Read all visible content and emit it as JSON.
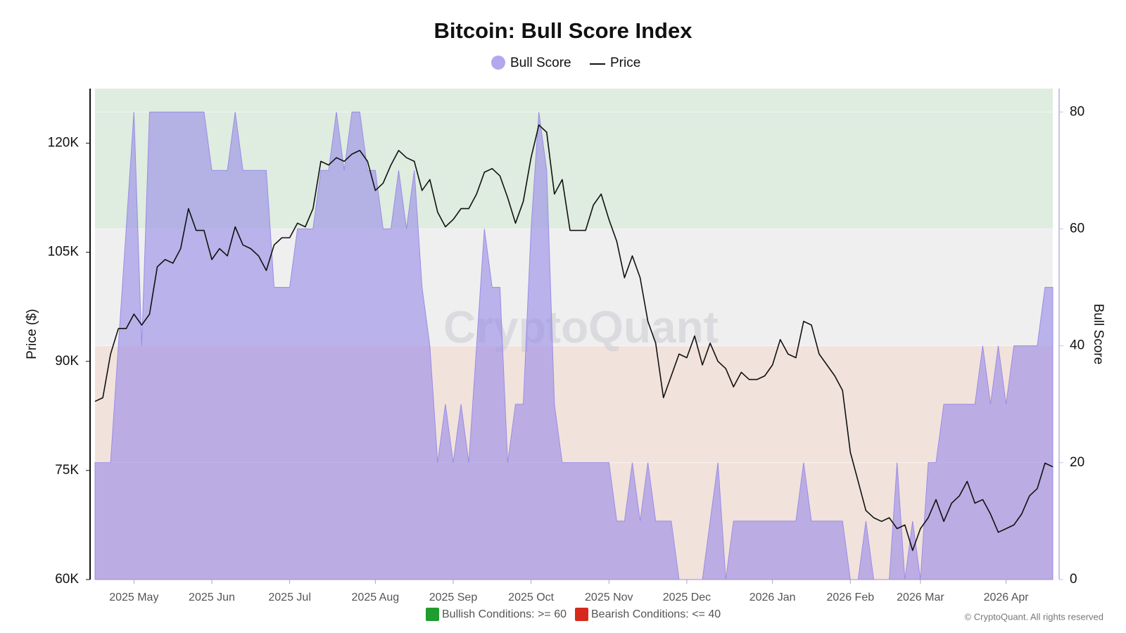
{
  "chart_data": {
    "type": "combo",
    "title": "Bitcoin: Bull Score Index",
    "ylabel": "Price ($)",
    "y2label": "Bull Score",
    "watermark": "CryptoQuant",
    "copyright": "© CryptoQuant. All rights reserved",
    "categories": [
      null,
      null,
      null,
      null,
      null,
      "2025 May",
      null,
      null,
      null,
      null,
      null,
      null,
      null,
      null,
      null,
      "2025 Jun",
      null,
      null,
      null,
      null,
      null,
      null,
      null,
      null,
      null,
      "2025 Jul",
      null,
      null,
      null,
      null,
      null,
      null,
      null,
      null,
      null,
      null,
      "2025 Aug",
      null,
      null,
      null,
      null,
      null,
      null,
      null,
      null,
      null,
      "2025 Sep",
      null,
      null,
      null,
      null,
      null,
      null,
      null,
      null,
      null,
      "2025 Oct",
      null,
      null,
      null,
      null,
      null,
      null,
      null,
      null,
      null,
      "2025 Nov",
      null,
      null,
      null,
      null,
      null,
      null,
      null,
      null,
      null,
      "2025 Dec",
      null,
      null,
      null,
      null,
      null,
      null,
      null,
      null,
      null,
      null,
      "2026 Jan",
      null,
      null,
      null,
      null,
      null,
      null,
      null,
      null,
      null,
      "2026 Feb",
      null,
      null,
      null,
      null,
      null,
      null,
      null,
      null,
      "2026 Mar",
      null,
      null,
      null,
      null,
      null,
      null,
      null,
      null,
      null,
      null,
      "2026 Apr",
      null,
      null,
      null,
      null,
      null,
      null
    ],
    "series": [
      {
        "name": "Bull Score",
        "type": "area",
        "axis": "y2",
        "color": "#9a8ce6",
        "values": [
          20,
          20,
          20,
          40,
          60,
          80,
          40,
          80,
          80,
          80,
          80,
          80,
          80,
          80,
          80,
          70,
          70,
          70,
          80,
          70,
          70,
          70,
          70,
          50,
          50,
          50,
          60,
          60,
          60,
          70,
          70,
          80,
          70,
          80,
          80,
          70,
          70,
          60,
          60,
          70,
          60,
          70,
          50,
          40,
          20,
          30,
          20,
          30,
          20,
          40,
          60,
          50,
          50,
          20,
          30,
          30,
          60,
          80,
          70,
          30,
          20,
          20,
          20,
          20,
          20,
          20,
          20,
          10,
          10,
          20,
          10,
          20,
          10,
          10,
          10,
          0,
          0,
          0,
          0,
          10,
          20,
          0,
          10,
          10,
          10,
          10,
          10,
          10,
          10,
          10,
          10,
          20,
          10,
          10,
          10,
          10,
          10,
          0,
          0,
          10,
          0,
          0,
          0,
          20,
          0,
          10,
          0,
          20,
          20,
          30,
          30,
          30,
          30,
          30,
          40,
          30,
          40,
          30,
          40,
          40,
          40,
          40,
          50,
          50
        ]
      },
      {
        "name": "Price",
        "type": "line",
        "axis": "y",
        "color": "#111111",
        "values": [
          84500,
          85000,
          91000,
          94500,
          94500,
          96500,
          95000,
          96500,
          103000,
          104000,
          103500,
          105500,
          111000,
          108000,
          108000,
          104000,
          105500,
          104500,
          108500,
          106000,
          105500,
          104500,
          102500,
          106000,
          107000,
          107000,
          109000,
          108500,
          111000,
          117500,
          117000,
          118000,
          117500,
          118500,
          119000,
          117500,
          113500,
          114500,
          117000,
          119000,
          118000,
          117500,
          113500,
          115000,
          110500,
          108500,
          109500,
          111000,
          111000,
          113000,
          116000,
          116500,
          115500,
          112500,
          109000,
          112000,
          118000,
          122500,
          121500,
          113000,
          115000,
          108000,
          108000,
          108000,
          111500,
          113000,
          109500,
          106500,
          101500,
          104500,
          101500,
          95500,
          92500,
          85000,
          88000,
          91000,
          90500,
          93500,
          89500,
          92500,
          90000,
          89000,
          86500,
          88500,
          87500,
          87500,
          88000,
          89500,
          93000,
          91000,
          90500,
          95500,
          95000,
          91000,
          89500,
          88000,
          86000,
          77500,
          73500,
          69500,
          68500,
          68000,
          68500,
          67000,
          67500,
          64000,
          67000,
          68500,
          71000,
          68000,
          70500,
          71500,
          73500,
          70500,
          71000,
          69000,
          66500,
          67000,
          67500,
          69000,
          71500,
          72500,
          76000,
          75500
        ]
      }
    ],
    "ylim": [
      60000,
      127500
    ],
    "yticks": [
      {
        "value": 60000,
        "label": "60K"
      },
      {
        "value": 75000,
        "label": "75K"
      },
      {
        "value": 90000,
        "label": "90K"
      },
      {
        "value": 105000,
        "label": "105K"
      },
      {
        "value": 120000,
        "label": "120K"
      }
    ],
    "y2lim": [
      0,
      84
    ],
    "y2ticks": [
      0,
      20,
      40,
      60,
      80
    ],
    "grid": true,
    "zones": [
      {
        "label": "Bullish Conditions: >= 60",
        "min": 60,
        "color": "#dfece0",
        "swatch_color": "#1f9d2e"
      },
      {
        "label": "Bearish Conditions: <= 40",
        "max": 40,
        "color": "#f1e2dc",
        "swatch_color": "#d62a1e"
      }
    ],
    "plot_background": "#efefef"
  }
}
